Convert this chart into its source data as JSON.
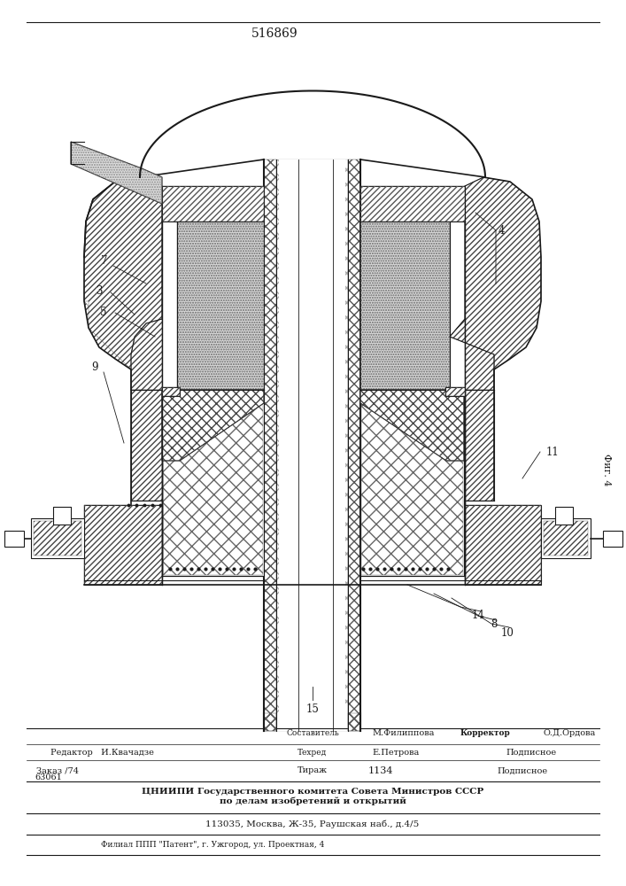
{
  "patent_number": "516869",
  "fig_label": "Фиг. 4",
  "background_color": "#ffffff",
  "line_color": "#1a1a1a",
  "footer": {
    "editor": "Редактор   И.Квачадзе",
    "composer_label": "Составитель",
    "composer_value": "М.Филиппова",
    "corrector_label": "Корректор",
    "corrector_value": "О.Д.Ордова",
    "techred_label": "Техред",
    "techred_value": "Е.Петрова",
    "podpisnoe": "Подписное",
    "zakaz_label": "Заказ /74",
    "zakaz_num": "63061",
    "tirazh_label": "Тираж",
    "tirazh_value": "1134",
    "org1": "ЦНИИПИ Государственного комитета Совета Министров СССР",
    "org2": "по делам изобретений и открытий",
    "address": "113035, Москва, Ж-35, Раушская наб., д.4/5",
    "filial": "Филиал ППП \"Патент\", г. Ужгород, ул. Проектная, 4"
  }
}
